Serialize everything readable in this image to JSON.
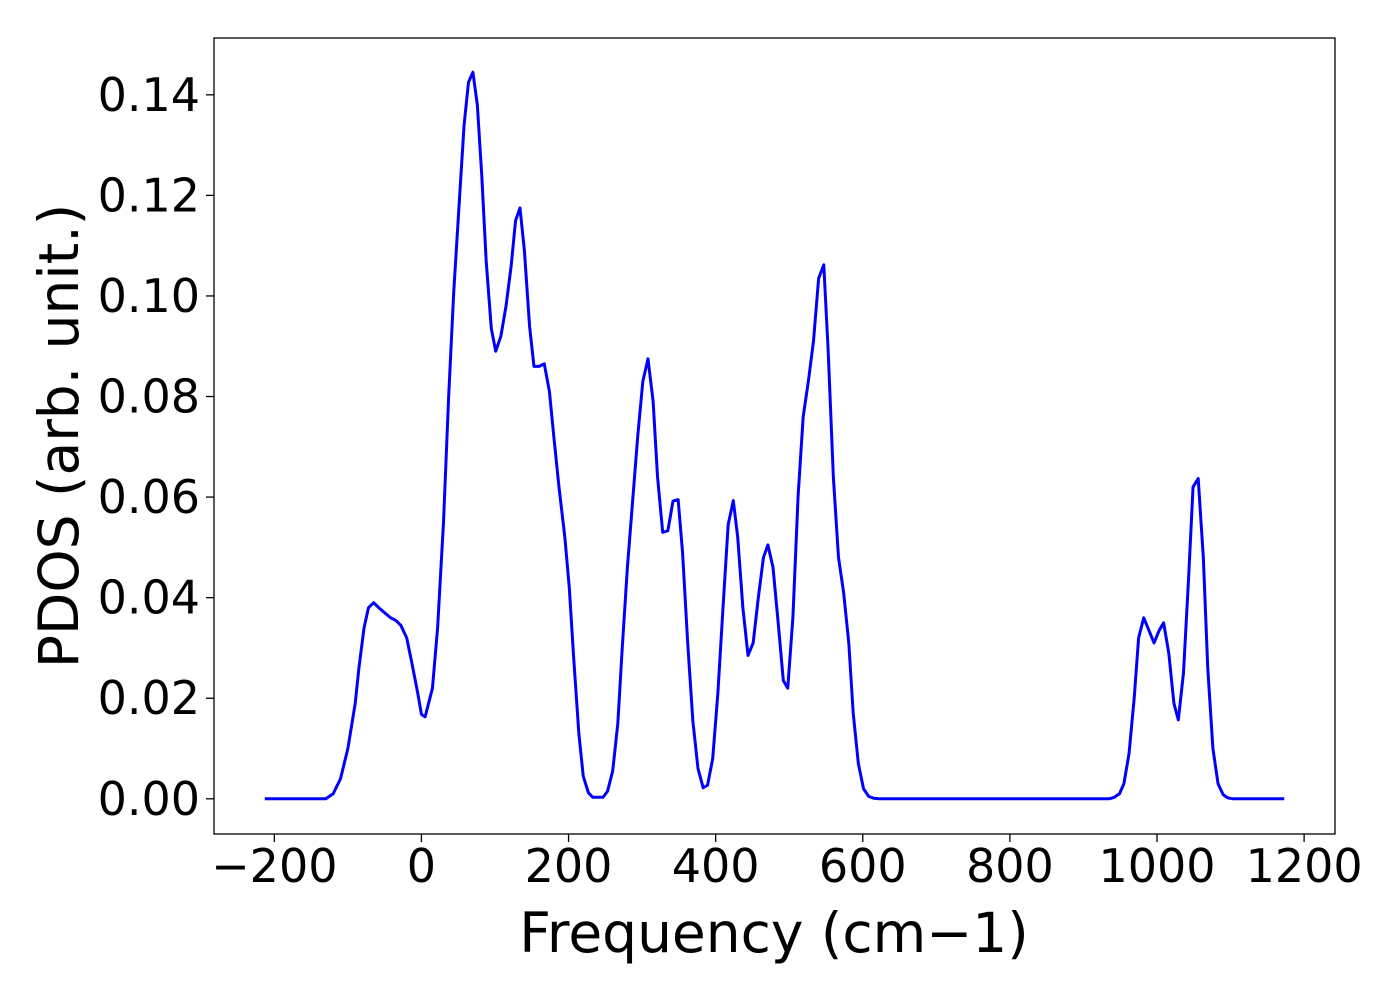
{
  "chart_data": {
    "type": "line",
    "x_label": "Frequency (cm−1)",
    "y_label": "PDOS (arb. unit.)",
    "xlim": [
      -282,
      1242
    ],
    "ylim": [
      -0.007,
      0.1513
    ],
    "xticks": [
      {
        "value": -200,
        "label": "−200"
      },
      0,
      200,
      400,
      600,
      800,
      1000,
      1200
    ],
    "yticks": [
      {
        "value": 0,
        "label": "0.00"
      },
      {
        "value": 0.02,
        "label": "0.02"
      },
      {
        "value": 0.04,
        "label": "0.04"
      },
      {
        "value": 0.06,
        "label": "0.06"
      },
      {
        "value": 0.08,
        "label": "0.08"
      },
      {
        "value": 0.1,
        "label": "0.10"
      },
      {
        "value": 0.12,
        "label": "0.12"
      },
      {
        "value": 0.14,
        "label": "0.14"
      }
    ],
    "grid": false,
    "x": [
      -213,
      -130,
      -120,
      -110,
      -100,
      -90,
      -85,
      -78,
      -72,
      -65,
      -58,
      -50,
      -42,
      -35,
      -28,
      -20,
      -13,
      -5,
      0,
      5,
      15,
      22,
      30,
      37,
      44,
      52,
      58,
      64,
      70,
      76,
      82,
      88,
      95,
      101,
      108,
      115,
      122,
      128,
      134,
      140,
      147,
      153,
      160,
      167,
      174,
      180,
      187,
      195,
      201,
      207,
      214,
      220,
      227,
      233,
      240,
      247,
      253,
      260,
      267,
      273,
      280,
      287,
      294,
      301,
      308,
      315,
      321,
      328,
      335,
      342,
      349,
      355,
      362,
      369,
      376,
      383,
      389,
      396,
      403,
      410,
      417,
      424,
      430,
      437,
      444,
      451,
      458,
      465,
      471,
      478,
      485,
      492,
      498,
      505,
      512,
      519,
      526,
      533,
      540,
      547,
      553,
      560,
      567,
      574,
      581,
      587,
      594,
      601,
      608,
      615,
      622,
      935,
      942,
      949,
      955,
      962,
      969,
      975,
      982,
      989,
      996,
      1003,
      1009,
      1016,
      1023,
      1029,
      1036,
      1043,
      1049,
      1056,
      1063,
      1069,
      1076,
      1083,
      1090,
      1096,
      1103,
      1173
    ],
    "series": [
      {
        "name": "PDOS",
        "color": "#0000ff",
        "values": [
          0,
          0,
          0.001,
          0.004,
          0.01,
          0.019,
          0.026,
          0.034,
          0.038,
          0.039,
          0.038,
          0.037,
          0.036,
          0.0355,
          0.0345,
          0.032,
          0.027,
          0.021,
          0.0168,
          0.0163,
          0.022,
          0.034,
          0.055,
          0.08,
          0.101,
          0.12,
          0.134,
          0.1425,
          0.1445,
          0.138,
          0.124,
          0.107,
          0.0935,
          0.089,
          0.092,
          0.098,
          0.106,
          0.115,
          0.1175,
          0.109,
          0.094,
          0.086,
          0.086,
          0.0865,
          0.081,
          0.072,
          0.062,
          0.052,
          0.042,
          0.028,
          0.013,
          0.0045,
          0.0012,
          0.0003,
          0.0003,
          0.0003,
          0.0015,
          0.0055,
          0.015,
          0.03,
          0.046,
          0.059,
          0.072,
          0.083,
          0.0875,
          0.079,
          0.064,
          0.053,
          0.0533,
          0.0592,
          0.0595,
          0.049,
          0.031,
          0.0155,
          0.006,
          0.0022,
          0.0027,
          0.008,
          0.021,
          0.038,
          0.0545,
          0.0593,
          0.052,
          0.038,
          0.0285,
          0.031,
          0.04,
          0.048,
          0.0505,
          0.046,
          0.035,
          0.0235,
          0.022,
          0.036,
          0.06,
          0.076,
          0.083,
          0.091,
          0.1035,
          0.1062,
          0.089,
          0.064,
          0.048,
          0.041,
          0.031,
          0.017,
          0.007,
          0.002,
          0.0005,
          0.0001,
          0,
          0,
          0.0003,
          0.001,
          0.003,
          0.009,
          0.02,
          0.032,
          0.036,
          0.0335,
          0.031,
          0.0335,
          0.035,
          0.029,
          0.019,
          0.0157,
          0.025,
          0.044,
          0.062,
          0.0637,
          0.048,
          0.026,
          0.01,
          0.003,
          0.0008,
          0.0002,
          0,
          0
        ]
      }
    ]
  }
}
